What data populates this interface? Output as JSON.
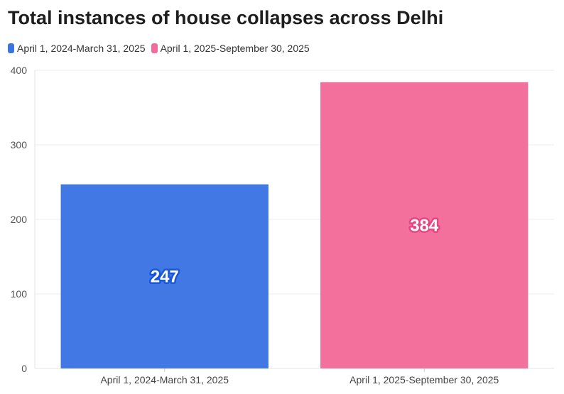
{
  "chart_data": {
    "type": "bar",
    "title": "Total instances of house collapses across Delhi",
    "categories": [
      "April 1, 2024-March 31, 2025",
      "April 1, 2025-September 30, 2025"
    ],
    "values": [
      247,
      384
    ],
    "data_labels": [
      "247",
      "384"
    ],
    "colors": [
      "#3b74e3",
      "#f36b9a"
    ],
    "label_outline_colors": [
      "#1a56d6",
      "#e8457f"
    ],
    "legend": [
      "April 1, 2024-March 31, 2025",
      "April 1, 2025-September 30, 2025"
    ],
    "legend_position": "top-left",
    "ylim": [
      0,
      400
    ],
    "yticks": [
      0,
      100,
      200,
      300,
      400
    ],
    "ytick_labels": [
      "0",
      "100",
      "200",
      "300",
      "400"
    ],
    "xlabel": "",
    "ylabel": "",
    "grid": true
  }
}
